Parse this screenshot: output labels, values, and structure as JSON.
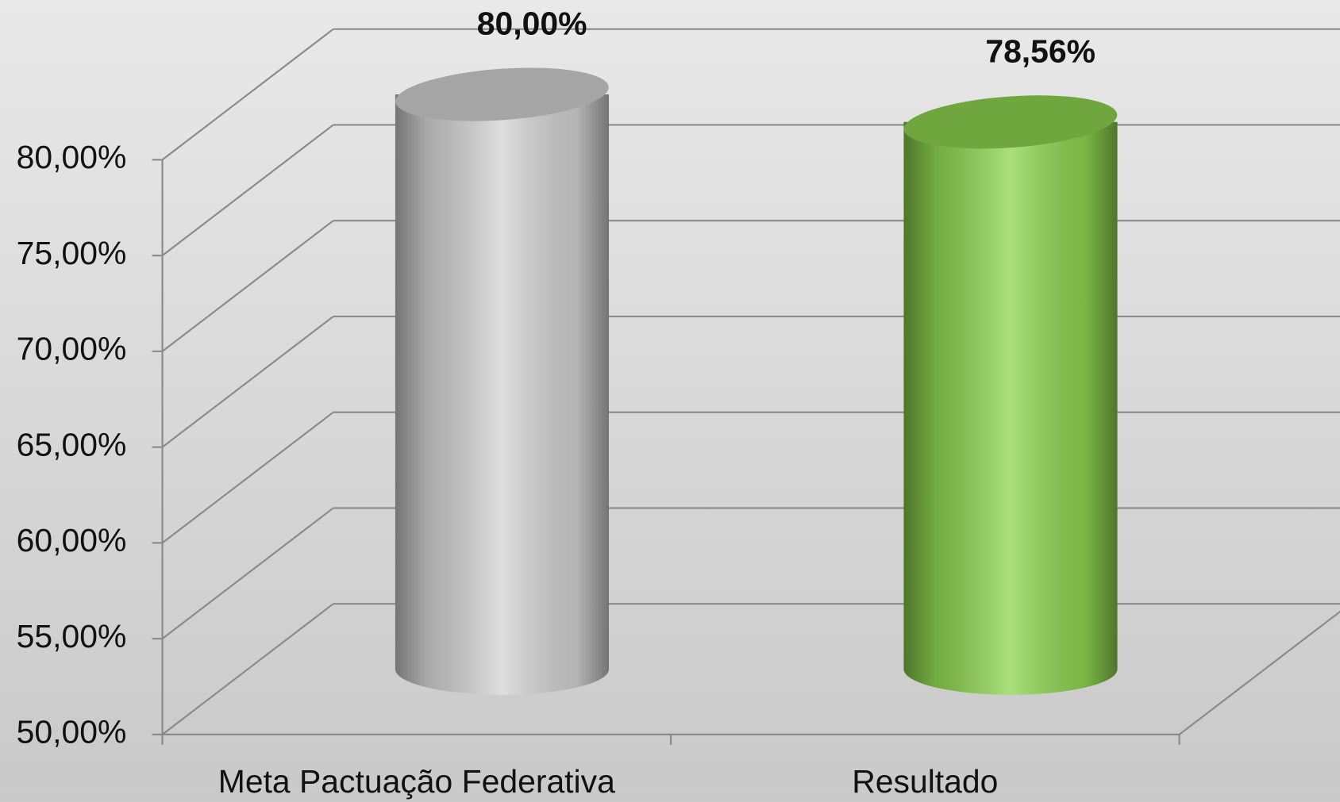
{
  "chart_data": {
    "type": "bar3d",
    "categories": [
      "Meta Pactuação Federativa",
      "Resultado"
    ],
    "values": [
      80,
      78.56
    ],
    "value_labels": [
      "80,00%",
      "78,56%"
    ],
    "colors": [
      "#d4d4d4",
      "#8fd650"
    ],
    "ylim": [
      50,
      80
    ],
    "yticks": [
      {
        "value": 50,
        "label": "50,00%"
      },
      {
        "value": 55,
        "label": "55,00%"
      },
      {
        "value": 60,
        "label": "60,00%"
      },
      {
        "value": 65,
        "label": "65,00%"
      },
      {
        "value": 70,
        "label": "70,00%"
      },
      {
        "value": 75,
        "label": "75,00%"
      },
      {
        "value": 80,
        "label": "80,00%"
      }
    ],
    "grid": true
  }
}
